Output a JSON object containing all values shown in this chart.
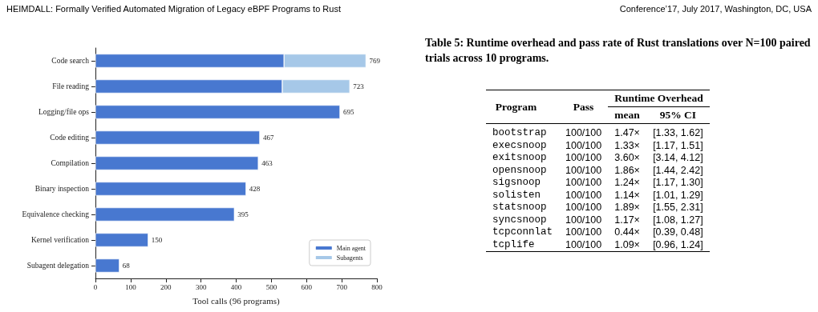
{
  "chart_data": [
    {
      "type": "bar",
      "orientation": "horizontal",
      "stacked": true,
      "xlabel": "Tool calls (96 programs)",
      "annotations": [
        "HEIMDALL: Formally Verified Automated Migration of Legacy eBPF Programs to Rust",
        "Conference’17, July 2017, Washington, DC, USA"
      ],
      "categories": [
        "Code search",
        "File reading",
        "Logging/file ops",
        "Code editing",
        "Compilation",
        "Binary inspection",
        "Equivalence checking",
        "Kernel verification",
        "Subagent delegation"
      ],
      "series": [
        {
          "name": "Main agent",
          "color": "#4878d0",
          "values": [
            536,
            531,
            695,
            467,
            463,
            428,
            395,
            150,
            68
          ]
        },
        {
          "name": "Subagents",
          "color": "#a6c8e8",
          "values": [
            233,
            192,
            null,
            null,
            null,
            null,
            null,
            null,
            null
          ]
        }
      ],
      "totals": [
        "769",
        "723",
        "695",
        "467",
        "463",
        "428",
        "395",
        "150",
        "68"
      ],
      "xlim": [
        0,
        800
      ],
      "xticks": [
        0,
        100,
        200,
        300,
        400,
        500,
        600,
        700,
        800
      ],
      "grid": false,
      "legend": "bottom right"
    },
    {
      "type": "other",
      "title": "Table 5: Runtime overhead and pass rate of Rust translations over N=100 paired trials across 10 programs.",
      "annotations": [
        "Program",
        "Pass",
        "Runtime Overhead",
        "mean",
        "95% CI",
        "bootstrap",
        "100/100",
        "1.47×",
        "[1.33, 1.62]",
        "execsnoop",
        "100/100",
        "1.33×",
        "[1.17, 1.51]",
        "exitsnoop",
        "100/100",
        "3.60×",
        "[3.14, 4.12]",
        "opensnoop",
        "100/100",
        "1.86×",
        "[1.44, 2.42]",
        "sigsnoop",
        "100/100",
        "1.24×",
        "[1.17, 1.30]",
        "solisten",
        "100/100",
        "1.14×",
        "[1.01, 1.29]",
        "statsnoop",
        "100/100",
        "1.89×",
        "[1.55, 2.31]",
        "syncsnoop",
        "100/100",
        "1.17×",
        "[1.08, 1.27]",
        "tcpconnlat",
        "100/100",
        "0.44×",
        "[0.39, 0.48]",
        "tcplife",
        "100/100",
        "1.09×",
        "[0.96, 1.24]"
      ]
    }
  ]
}
